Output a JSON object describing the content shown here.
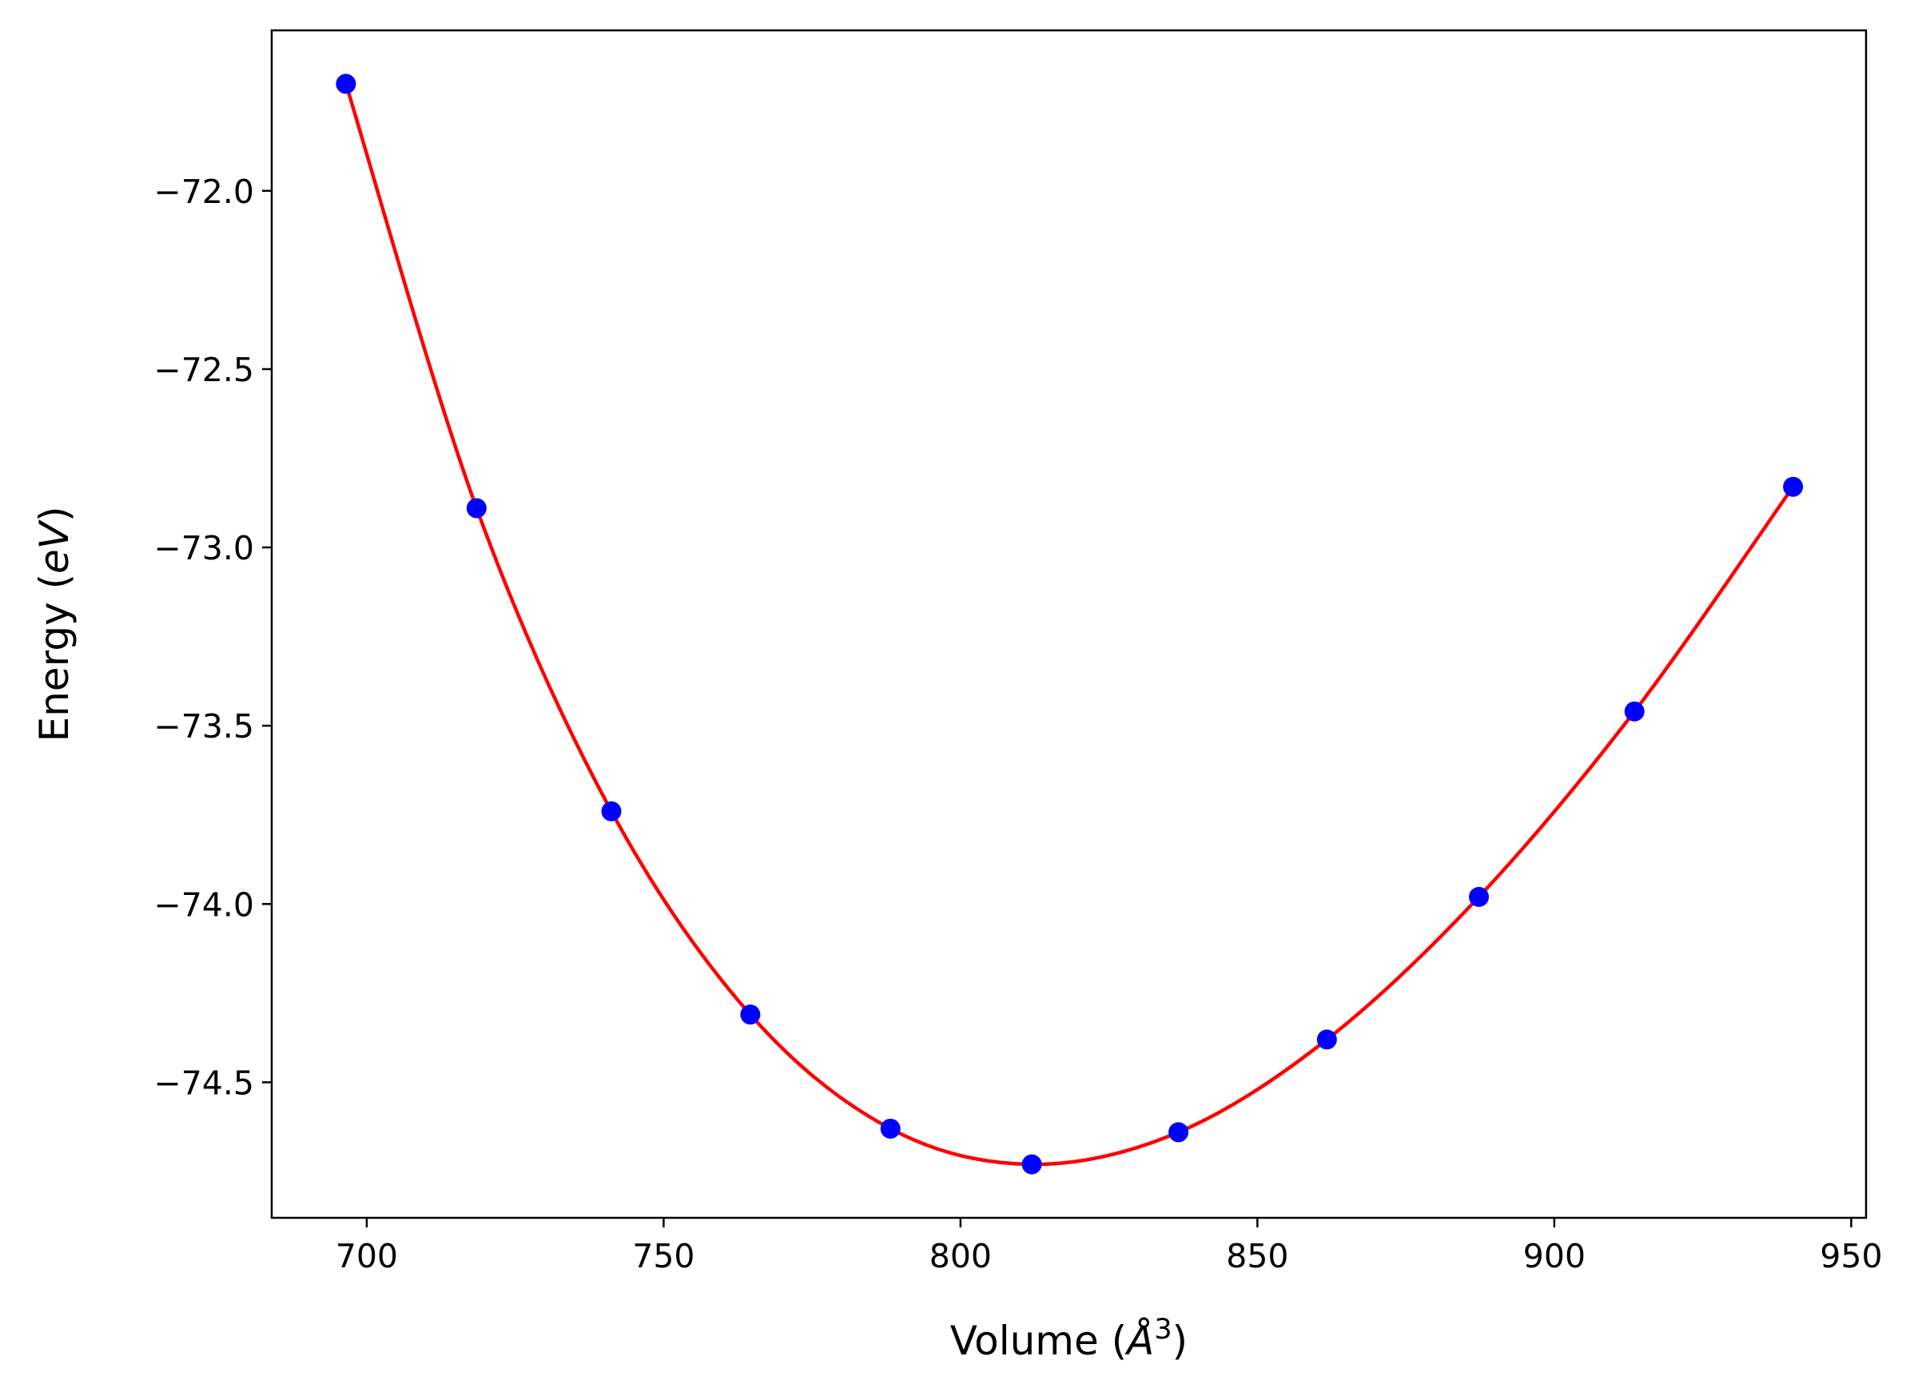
{
  "chart_data": {
    "type": "scatter",
    "title": "",
    "xlabel": "Volume ($\\AA^3$)",
    "xlabel_parts": {
      "prefix": "Volume (",
      "symbol": "Å",
      "exponent": "3",
      "suffix": ")"
    },
    "ylabel": "Energy ($eV$)",
    "ylabel_parts": {
      "prefix": "Energy (",
      "unit": "eV",
      "suffix": ")"
    },
    "xlim": [
      684.0,
      952.5
    ],
    "ylim": [
      -74.88,
      -71.55
    ],
    "xticks": [
      700,
      750,
      800,
      850,
      900,
      950
    ],
    "xtick_labels": [
      "700",
      "750",
      "800",
      "850",
      "900",
      "950"
    ],
    "yticks": [
      -72.0,
      -72.5,
      -73.0,
      -73.5,
      -74.0,
      -74.5
    ],
    "ytick_labels": [
      "−72.0",
      "−72.5",
      "−73.0",
      "−73.5",
      "−74.0",
      "−74.5"
    ],
    "grid": false,
    "legend": "none",
    "series": [
      {
        "kind": "points",
        "color": "#0000ff",
        "x": [
          696.5,
          718.5,
          741.2,
          764.6,
          788.2,
          812.0,
          836.7,
          861.7,
          887.3,
          913.5,
          940.2
        ],
        "y": [
          -71.7,
          -72.89,
          -73.74,
          -74.31,
          -74.63,
          -74.73,
          -74.64,
          -74.38,
          -73.98,
          -73.46,
          -72.83
        ]
      },
      {
        "kind": "fit-line",
        "color": "#ff0000",
        "x": [
          696.5,
          718.5,
          741.2,
          764.6,
          788.2,
          812.0,
          836.7,
          861.7,
          887.3,
          913.5,
          940.2
        ],
        "y": [
          -71.7,
          -72.89,
          -73.74,
          -74.31,
          -74.63,
          -74.73,
          -74.64,
          -74.38,
          -73.98,
          -73.46,
          -72.83
        ]
      }
    ]
  }
}
